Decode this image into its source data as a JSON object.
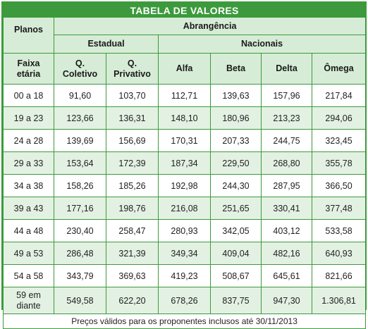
{
  "title": "TABELA DE VALORES",
  "header": {
    "planos": "Planos",
    "abrangencia": "Abrangência",
    "estadual": "Estadual",
    "nacionais": "Nacionais",
    "faixa_line1": "Faixa",
    "faixa_line2": "etária",
    "columns": [
      {
        "line1": "Q.",
        "line2": "Coletivo"
      },
      {
        "line1": "Q.",
        "line2": "Privativo"
      },
      {
        "line1": "Alfa",
        "line2": ""
      },
      {
        "line1": "Beta",
        "line2": ""
      },
      {
        "line1": "Delta",
        "line2": ""
      },
      {
        "line1": "Ômega",
        "line2": ""
      }
    ]
  },
  "rows": [
    {
      "age": "00 a 18",
      "values": [
        "91,60",
        "103,70",
        "112,71",
        "139,63",
        "157,96",
        "217,84"
      ]
    },
    {
      "age": "19 a 23",
      "values": [
        "123,66",
        "136,31",
        "148,10",
        "180,96",
        "213,23",
        "294,06"
      ]
    },
    {
      "age": "24 a 28",
      "values": [
        "139,69",
        "156,69",
        "170,31",
        "207,33",
        "244,75",
        "323,45"
      ]
    },
    {
      "age": "29 a 33",
      "values": [
        "153,64",
        "172,39",
        "187,34",
        "229,50",
        "268,80",
        "355,78"
      ]
    },
    {
      "age": "34 a 38",
      "values": [
        "158,26",
        "185,26",
        "192,98",
        "244,30",
        "287,95",
        "366,50"
      ]
    },
    {
      "age": "39 a 43",
      "values": [
        "177,16",
        "198,76",
        "216,08",
        "251,65",
        "330,41",
        "377,48"
      ]
    },
    {
      "age": "44 a 48",
      "values": [
        "230,40",
        "258,47",
        "280,93",
        "342,05",
        "403,12",
        "533,58"
      ]
    },
    {
      "age": "49 a 53",
      "values": [
        "286,48",
        "321,39",
        "349,34",
        "409,04",
        "482,16",
        "640,93"
      ]
    },
    {
      "age": "54 a 58",
      "values": [
        "343,79",
        "369,63",
        "419,23",
        "508,67",
        "645,61",
        "821,66"
      ]
    },
    {
      "age_line1": "59 em",
      "age_line2": "diante",
      "values": [
        "549,58",
        "622,20",
        "678,26",
        "837,75",
        "947,30",
        "1.306,81"
      ]
    }
  ],
  "footer": "Preços válidos para os proponentes inclusos até 30/11/2013",
  "colors": {
    "accent": "#3c9a3c",
    "header_bg": "#d6ecd6",
    "stripe_bg": "#e3f1e3"
  }
}
